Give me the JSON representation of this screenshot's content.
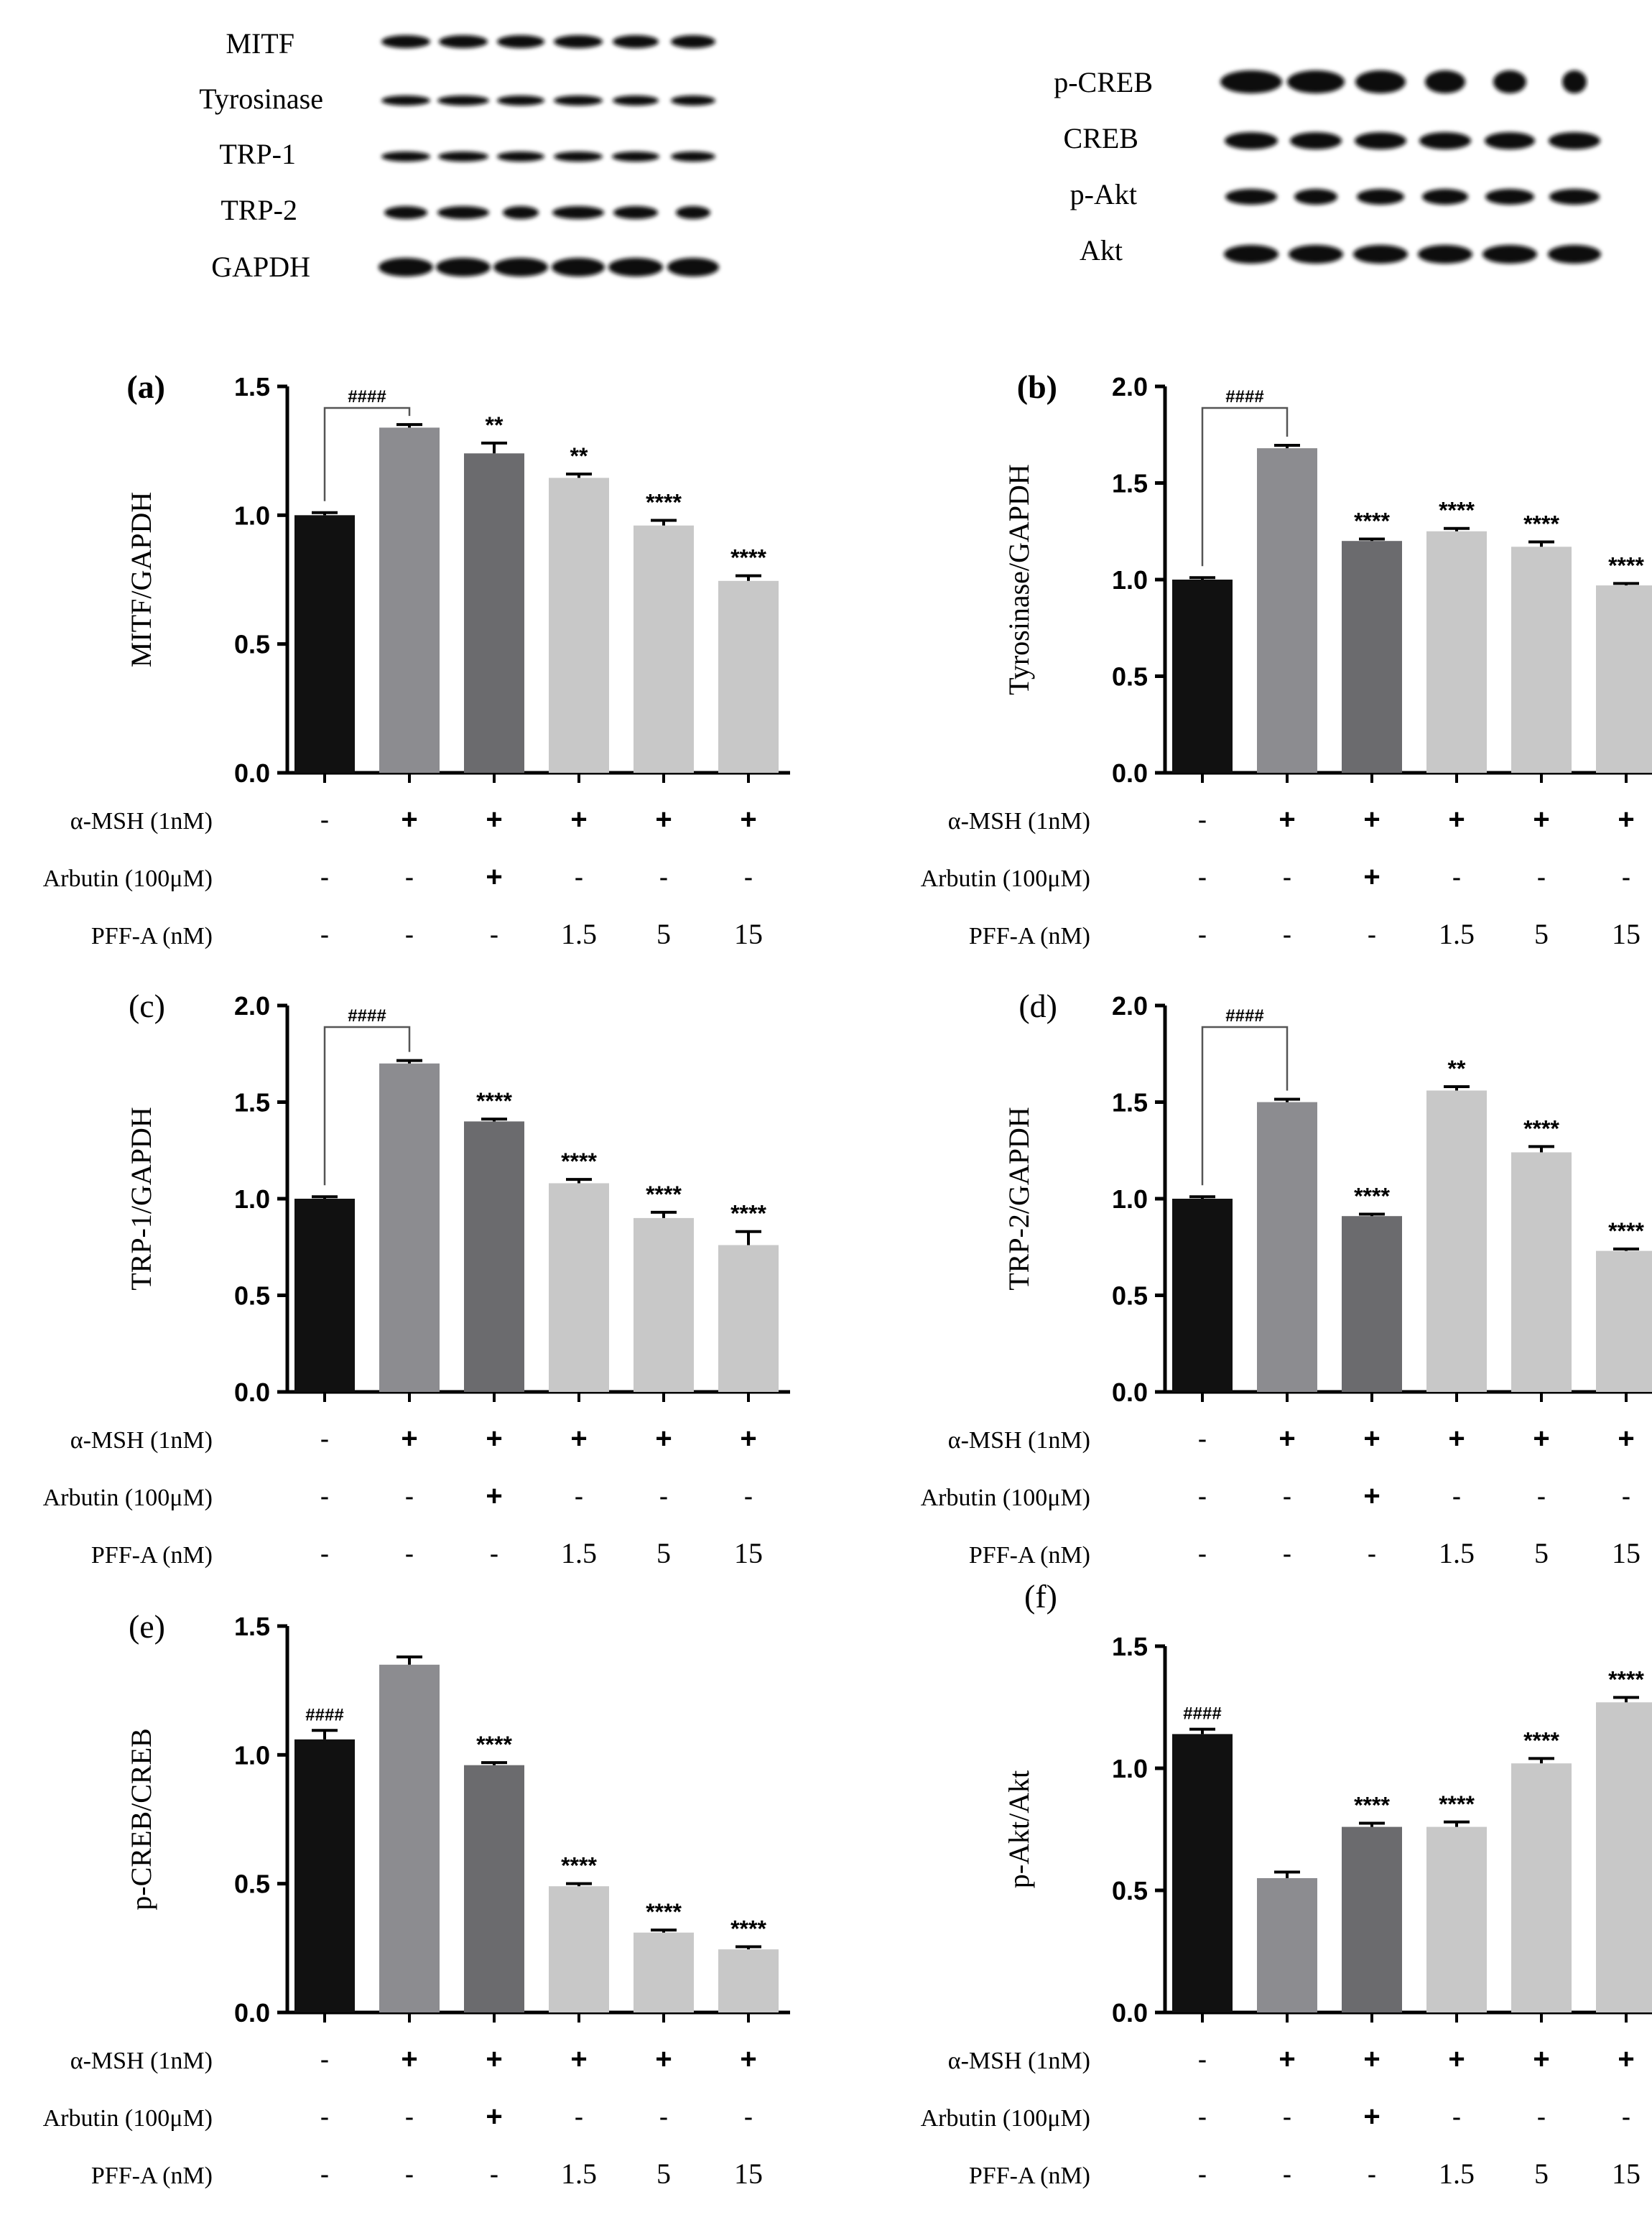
{
  "blots": {
    "left": {
      "labels": [
        "MITF",
        "Tyrosinase",
        "TRP-1",
        "TRP-2",
        "GAPDH"
      ],
      "lanes": 6
    },
    "right": {
      "labels": [
        "p-CREB",
        "CREB",
        "p-Akt",
        "Akt"
      ],
      "lanes": 6
    }
  },
  "conditions": {
    "rows": [
      {
        "label": "α-MSH (1nM)",
        "values": [
          "-",
          "+",
          "+",
          "+",
          "+",
          "+"
        ]
      },
      {
        "label": "Arbutin (100μM)",
        "values": [
          "-",
          "-",
          "+",
          "-",
          "-",
          "-"
        ]
      },
      {
        "label": "PFF-A (nM)",
        "values": [
          "-",
          "-",
          "-",
          "1.5",
          "5",
          "15"
        ]
      }
    ]
  },
  "colors": {
    "bars": [
      "#111111",
      "#8c8c90",
      "#6b6b6e",
      "#c8c8c8",
      "#c8c8c8",
      "#c8c8c8"
    ],
    "axis": "#000000"
  },
  "chart_data": [
    {
      "panel": "(a)",
      "type": "bar",
      "ylabel": "MITF/GAPDH",
      "ylim": [
        0,
        1.5
      ],
      "yticks": [
        "0.0",
        "0.5",
        "1.0",
        "1.5"
      ],
      "values": [
        1.0,
        1.34,
        1.24,
        1.145,
        0.96,
        0.745
      ],
      "errors": [
        0.01,
        0.012,
        0.04,
        0.015,
        0.02,
        0.02
      ],
      "annotations": [
        "",
        "",
        "**",
        "**",
        "****",
        "****"
      ],
      "bracket": "####",
      "bracket_type": "bracket"
    },
    {
      "panel": "(b)",
      "type": "bar",
      "ylabel": "Tyrosinase/GAPDH",
      "ylim": [
        0,
        2.0
      ],
      "yticks": [
        "0.0",
        "0.5",
        "1.0",
        "1.5",
        "2.0"
      ],
      "values": [
        1.0,
        1.68,
        1.2,
        1.25,
        1.17,
        0.97
      ],
      "errors": [
        0.01,
        0.015,
        0.01,
        0.015,
        0.025,
        0.01
      ],
      "annotations": [
        "",
        "",
        "****",
        "****",
        "****",
        "****"
      ],
      "bracket": "####",
      "bracket_type": "bracket"
    },
    {
      "panel": "(c)",
      "type": "bar",
      "ylabel": "TRP-1/GAPDH",
      "ylim": [
        0,
        2.0
      ],
      "yticks": [
        "0.0",
        "0.5",
        "1.0",
        "1.5",
        "2.0"
      ],
      "values": [
        1.0,
        1.7,
        1.4,
        1.08,
        0.9,
        0.76
      ],
      "errors": [
        0.01,
        0.015,
        0.012,
        0.02,
        0.03,
        0.07
      ],
      "annotations": [
        "",
        "",
        "****",
        "****",
        "****",
        "****"
      ],
      "bracket": "####",
      "bracket_type": "bracket"
    },
    {
      "panel": "(d)",
      "type": "bar",
      "ylabel": "TRP-2/GAPDH",
      "ylim": [
        0,
        2.0
      ],
      "yticks": [
        "0.0",
        "0.5",
        "1.0",
        "1.5",
        "2.0"
      ],
      "values": [
        1.0,
        1.5,
        0.91,
        1.56,
        1.24,
        0.73
      ],
      "errors": [
        0.01,
        0.015,
        0.01,
        0.02,
        0.03,
        0.01
      ],
      "annotations": [
        "",
        "",
        "****",
        "**",
        "****",
        "****"
      ],
      "bracket": "####",
      "bracket_type": "bracket"
    },
    {
      "panel": "(e)",
      "type": "bar",
      "ylabel": "p-CREB/CREB",
      "ylim": [
        0,
        1.5
      ],
      "yticks": [
        "0.0",
        "0.5",
        "1.0",
        "1.5"
      ],
      "values": [
        1.06,
        1.35,
        0.96,
        0.49,
        0.31,
        0.245
      ],
      "errors": [
        0.035,
        0.03,
        0.01,
        0.01,
        0.01,
        0.01
      ],
      "annotations": [
        "####",
        "",
        "****",
        "****",
        "****",
        "****"
      ],
      "bracket": "",
      "bracket_type": "none"
    },
    {
      "panel": "(f)",
      "type": "bar",
      "ylabel": "p-Akt/Akt",
      "ylim": [
        0,
        1.5
      ],
      "yticks": [
        "0.0",
        "0.5",
        "1.0",
        "1.5"
      ],
      "values": [
        1.14,
        0.55,
        0.76,
        0.76,
        1.02,
        1.27
      ],
      "errors": [
        0.02,
        0.025,
        0.015,
        0.02,
        0.02,
        0.02
      ],
      "annotations": [
        "####",
        "",
        "****",
        "****",
        "****",
        "****"
      ],
      "bracket": "",
      "bracket_type": "none"
    }
  ]
}
